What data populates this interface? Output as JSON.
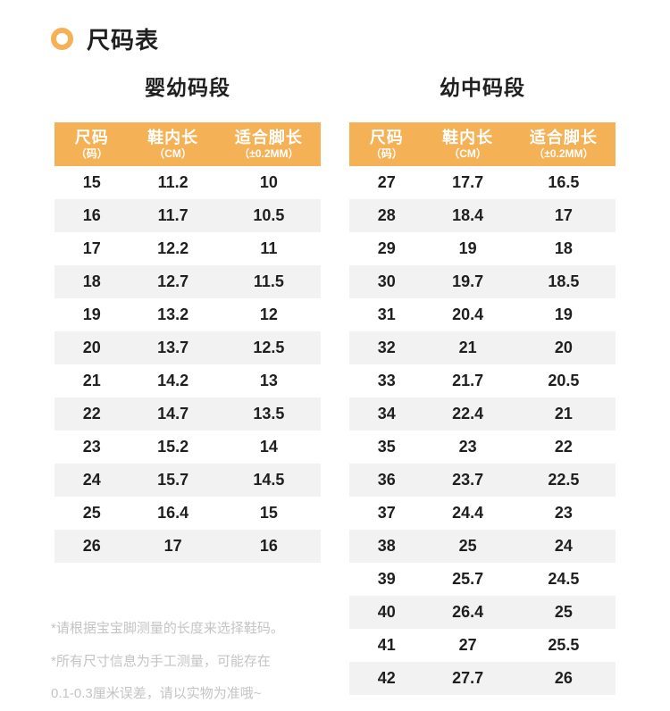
{
  "page": {
    "title": "尺码表",
    "accent_color": "#F5B155",
    "stripe_color": "#F2F2F2"
  },
  "columns": [
    {
      "label": "尺码",
      "sub": "（码）"
    },
    {
      "label": "鞋内长",
      "sub": "（CM）"
    },
    {
      "label": "适合脚长",
      "sub": "（±0.2MM）"
    }
  ],
  "tables": [
    {
      "caption": "婴幼码段",
      "rows": [
        [
          "15",
          "11.2",
          "10"
        ],
        [
          "16",
          "11.7",
          "10.5"
        ],
        [
          "17",
          "12.2",
          "11"
        ],
        [
          "18",
          "12.7",
          "11.5"
        ],
        [
          "19",
          "13.2",
          "12"
        ],
        [
          "20",
          "13.7",
          "12.5"
        ],
        [
          "21",
          "14.2",
          "13"
        ],
        [
          "22",
          "14.7",
          "13.5"
        ],
        [
          "23",
          "15.2",
          "14"
        ],
        [
          "24",
          "15.7",
          "14.5"
        ],
        [
          "25",
          "16.4",
          "15"
        ],
        [
          "26",
          "17",
          "16"
        ]
      ]
    },
    {
      "caption": "幼中码段",
      "rows": [
        [
          "27",
          "17.7",
          "16.5"
        ],
        [
          "28",
          "18.4",
          "17"
        ],
        [
          "29",
          "19",
          "18"
        ],
        [
          "30",
          "19.7",
          "18.5"
        ],
        [
          "31",
          "20.4",
          "19"
        ],
        [
          "32",
          "21",
          "20"
        ],
        [
          "33",
          "21.7",
          "20.5"
        ],
        [
          "34",
          "22.4",
          "21"
        ],
        [
          "35",
          "23",
          "22"
        ],
        [
          "36",
          "23.7",
          "22.5"
        ],
        [
          "37",
          "24.4",
          "23"
        ],
        [
          "38",
          "25",
          "24"
        ],
        [
          "39",
          "25.7",
          "24.5"
        ],
        [
          "40",
          "26.4",
          "25"
        ],
        [
          "41",
          "27",
          "25.5"
        ],
        [
          "42",
          "27.7",
          "26"
        ]
      ]
    }
  ],
  "notes": [
    "*请根据宝宝脚测量的长度来选择鞋码。",
    "*所有尺寸信息为手工测量，可能存在",
    "0.1-0.3厘米误差，请以实物为准哦~"
  ]
}
